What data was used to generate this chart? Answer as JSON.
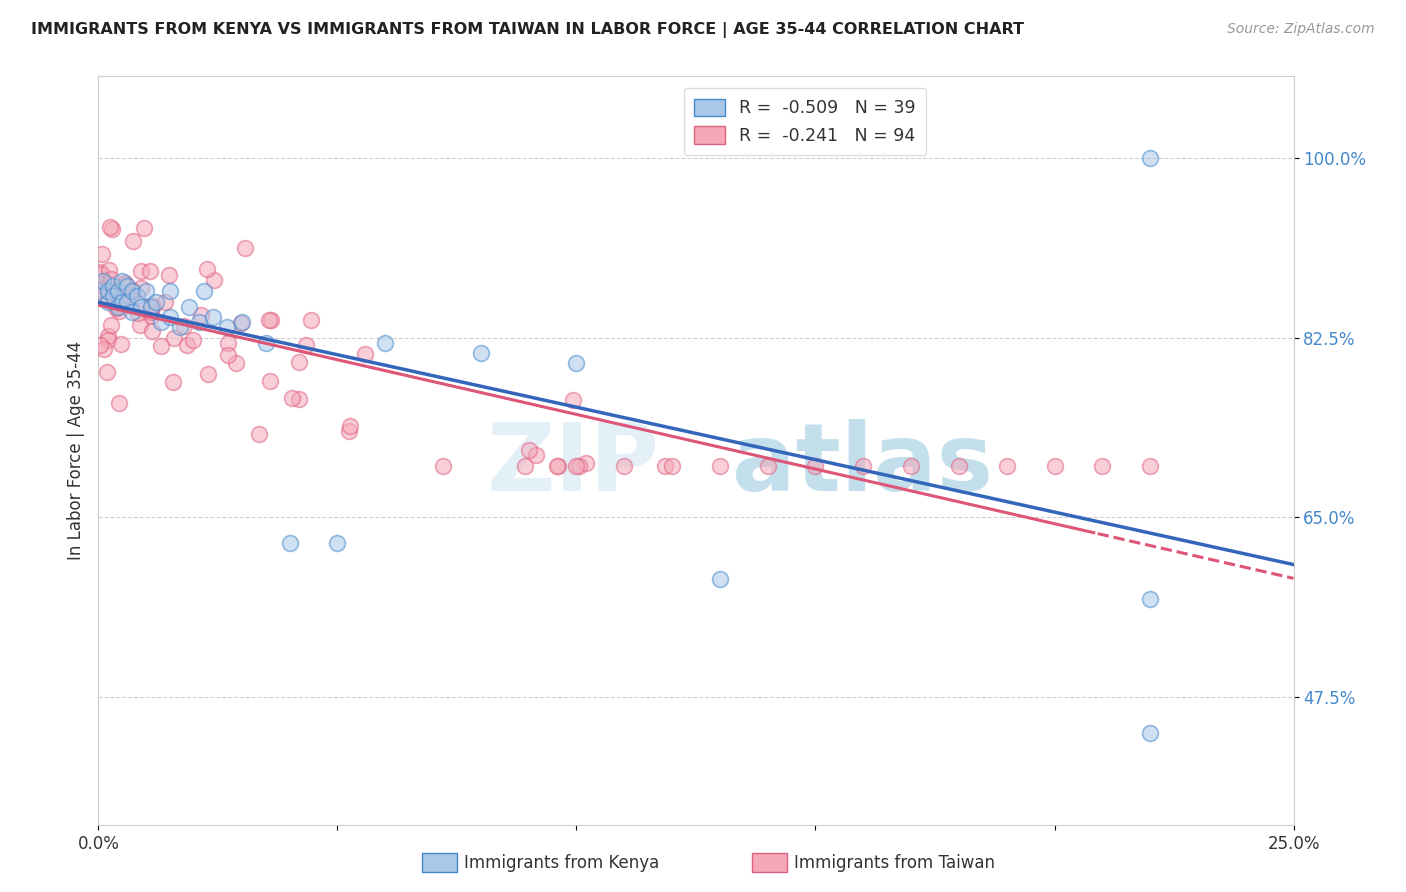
{
  "title": "IMMIGRANTS FROM KENYA VS IMMIGRANTS FROM TAIWAN IN LABOR FORCE | AGE 35-44 CORRELATION CHART",
  "source": "Source: ZipAtlas.com",
  "xlabel_kenya": "Immigrants from Kenya",
  "xlabel_taiwan": "Immigrants from Taiwan",
  "ylabel": "In Labor Force | Age 35-44",
  "watermark_zip": "ZIP",
  "watermark_atlas": "atlas",
  "legend_kenya_r": "-0.509",
  "legend_kenya_n": "39",
  "legend_taiwan_r": "-0.241",
  "legend_taiwan_n": "94",
  "kenya_fill_color": "#a8c8e8",
  "taiwan_fill_color": "#f4a8b8",
  "kenya_edge_color": "#4488cc",
  "taiwan_edge_color": "#e06080",
  "kenya_line_color": "#3366bb",
  "taiwan_line_color": "#dd5577",
  "xmin": 0.0,
  "xmax": 0.25,
  "ymin": 0.35,
  "ymax": 1.08,
  "yticks": [
    0.475,
    0.65,
    0.825,
    1.0
  ],
  "ytick_labels": [
    "47.5%",
    "65.0%",
    "82.5%",
    "100.0%"
  ],
  "bg_color": "#ffffff",
  "grid_color": "#cccccc"
}
